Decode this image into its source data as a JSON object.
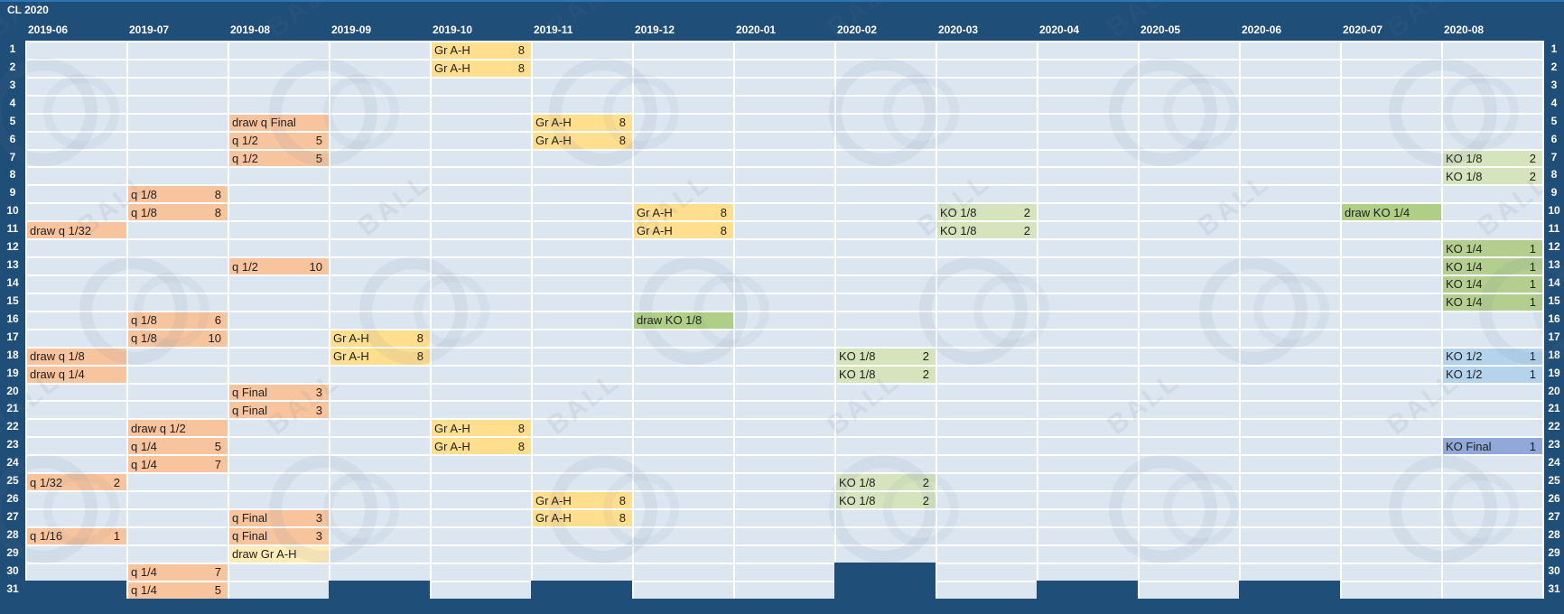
{
  "title": "CL 2020",
  "watermark": {
    "text": "BALL"
  },
  "day_numbers": [
    1,
    2,
    3,
    4,
    5,
    6,
    7,
    8,
    9,
    10,
    11,
    12,
    13,
    14,
    15,
    16,
    17,
    18,
    19,
    20,
    21,
    22,
    23,
    24,
    25,
    26,
    27,
    28,
    29,
    30,
    31
  ],
  "months": [
    {
      "label": "2019-06",
      "days": 30
    },
    {
      "label": "2019-07",
      "days": 31
    },
    {
      "label": "2019-08",
      "days": 31
    },
    {
      "label": "2019-09",
      "days": 30
    },
    {
      "label": "2019-10",
      "days": 31
    },
    {
      "label": "2019-11",
      "days": 30
    },
    {
      "label": "2019-12",
      "days": 31
    },
    {
      "label": "2020-01",
      "days": 31
    },
    {
      "label": "2020-02",
      "days": 29
    },
    {
      "label": "2020-03",
      "days": 31
    },
    {
      "label": "2020-04",
      "days": 30
    },
    {
      "label": "2020-05",
      "days": 31
    },
    {
      "label": "2020-06",
      "days": 30
    },
    {
      "label": "2020-07",
      "days": 31
    },
    {
      "label": "2020-08",
      "days": 31
    }
  ],
  "colors": {
    "navy": "#1F4E78",
    "cell_bg": "#DCE6F1",
    "gridline": "#FFFFFF",
    "text_dark": "#1D1D1D",
    "qual": "#F8C49E",
    "group": "#FFDF8E",
    "group_draw": "#FFECB8",
    "ko18": "#D6E4BE",
    "ko14": "#B4CE8F",
    "ko_draw": "#AECF85",
    "ko12": "#B5D3ED",
    "ko_final": "#90A9D9"
  },
  "events": [
    {
      "month": "2019-06",
      "day": 11,
      "label": "draw q 1/32",
      "value": "",
      "type": "qual"
    },
    {
      "month": "2019-06",
      "day": 18,
      "label": "draw q 1/8",
      "value": "",
      "type": "qual"
    },
    {
      "month": "2019-06",
      "day": 19,
      "label": "draw q 1/4",
      "value": "",
      "type": "qual"
    },
    {
      "month": "2019-06",
      "day": 25,
      "label": "q 1/32",
      "value": "2",
      "type": "qual"
    },
    {
      "month": "2019-06",
      "day": 28,
      "label": "q 1/16",
      "value": "1",
      "type": "qual"
    },
    {
      "month": "2019-07",
      "day": 9,
      "label": "q 1/8",
      "value": "8",
      "type": "qual"
    },
    {
      "month": "2019-07",
      "day": 10,
      "label": "q 1/8",
      "value": "8",
      "type": "qual"
    },
    {
      "month": "2019-07",
      "day": 16,
      "label": "q 1/8",
      "value": "6",
      "type": "qual"
    },
    {
      "month": "2019-07",
      "day": 17,
      "label": "q 1/8",
      "value": "10",
      "type": "qual"
    },
    {
      "month": "2019-07",
      "day": 22,
      "label": "draw q 1/2",
      "value": "",
      "type": "qual"
    },
    {
      "month": "2019-07",
      "day": 23,
      "label": "q 1/4",
      "value": "5",
      "type": "qual"
    },
    {
      "month": "2019-07",
      "day": 24,
      "label": "q 1/4",
      "value": "7",
      "type": "qual"
    },
    {
      "month": "2019-07",
      "day": 30,
      "label": "q 1/4",
      "value": "7",
      "type": "qual"
    },
    {
      "month": "2019-07",
      "day": 31,
      "label": "q 1/4",
      "value": "5",
      "type": "qual"
    },
    {
      "month": "2019-08",
      "day": 5,
      "label": "draw q Final",
      "value": "",
      "type": "qual"
    },
    {
      "month": "2019-08",
      "day": 6,
      "label": "q 1/2",
      "value": "5",
      "type": "qual"
    },
    {
      "month": "2019-08",
      "day": 7,
      "label": "q 1/2",
      "value": "5",
      "type": "qual"
    },
    {
      "month": "2019-08",
      "day": 13,
      "label": "q 1/2",
      "value": "10",
      "type": "qual"
    },
    {
      "month": "2019-08",
      "day": 20,
      "label": "q Final",
      "value": "3",
      "type": "qual"
    },
    {
      "month": "2019-08",
      "day": 21,
      "label": "q Final",
      "value": "3",
      "type": "qual"
    },
    {
      "month": "2019-08",
      "day": 27,
      "label": "q Final",
      "value": "3",
      "type": "qual"
    },
    {
      "month": "2019-08",
      "day": 28,
      "label": "q Final",
      "value": "3",
      "type": "qual"
    },
    {
      "month": "2019-08",
      "day": 29,
      "label": "draw Gr A-H",
      "value": "",
      "type": "group_draw"
    },
    {
      "month": "2019-09",
      "day": 17,
      "label": "Gr A-H",
      "value": "8",
      "type": "group"
    },
    {
      "month": "2019-09",
      "day": 18,
      "label": "Gr A-H",
      "value": "8",
      "type": "group"
    },
    {
      "month": "2019-10",
      "day": 1,
      "label": "Gr A-H",
      "value": "8",
      "type": "group"
    },
    {
      "month": "2019-10",
      "day": 2,
      "label": "Gr A-H",
      "value": "8",
      "type": "group"
    },
    {
      "month": "2019-10",
      "day": 22,
      "label": "Gr A-H",
      "value": "8",
      "type": "group"
    },
    {
      "month": "2019-10",
      "day": 23,
      "label": "Gr A-H",
      "value": "8",
      "type": "group"
    },
    {
      "month": "2019-11",
      "day": 5,
      "label": "Gr A-H",
      "value": "8",
      "type": "group"
    },
    {
      "month": "2019-11",
      "day": 6,
      "label": "Gr A-H",
      "value": "8",
      "type": "group"
    },
    {
      "month": "2019-11",
      "day": 26,
      "label": "Gr A-H",
      "value": "8",
      "type": "group"
    },
    {
      "month": "2019-11",
      "day": 27,
      "label": "Gr A-H",
      "value": "8",
      "type": "group"
    },
    {
      "month": "2019-12",
      "day": 10,
      "label": "Gr A-H",
      "value": "8",
      "type": "group"
    },
    {
      "month": "2019-12",
      "day": 11,
      "label": "Gr A-H",
      "value": "8",
      "type": "group"
    },
    {
      "month": "2019-12",
      "day": 16,
      "label": "draw KO 1/8",
      "value": "",
      "type": "ko_draw"
    },
    {
      "month": "2020-02",
      "day": 18,
      "label": "KO 1/8",
      "value": "2",
      "type": "ko18"
    },
    {
      "month": "2020-02",
      "day": 19,
      "label": "KO 1/8",
      "value": "2",
      "type": "ko18"
    },
    {
      "month": "2020-02",
      "day": 25,
      "label": "KO 1/8",
      "value": "2",
      "type": "ko18"
    },
    {
      "month": "2020-02",
      "day": 26,
      "label": "KO 1/8",
      "value": "2",
      "type": "ko18"
    },
    {
      "month": "2020-03",
      "day": 10,
      "label": "KO 1/8",
      "value": "2",
      "type": "ko18"
    },
    {
      "month": "2020-03",
      "day": 11,
      "label": "KO 1/8",
      "value": "2",
      "type": "ko18"
    },
    {
      "month": "2020-07",
      "day": 10,
      "label": "draw KO 1/4",
      "value": "",
      "type": "ko_draw"
    },
    {
      "month": "2020-08",
      "day": 7,
      "label": "KO 1/8",
      "value": "2",
      "type": "ko18"
    },
    {
      "month": "2020-08",
      "day": 8,
      "label": "KO 1/8",
      "value": "2",
      "type": "ko18"
    },
    {
      "month": "2020-08",
      "day": 12,
      "label": "KO 1/4",
      "value": "1",
      "type": "ko14"
    },
    {
      "month": "2020-08",
      "day": 13,
      "label": "KO 1/4",
      "value": "1",
      "type": "ko14"
    },
    {
      "month": "2020-08",
      "day": 14,
      "label": "KO 1/4",
      "value": "1",
      "type": "ko14"
    },
    {
      "month": "2020-08",
      "day": 15,
      "label": "KO 1/4",
      "value": "1",
      "type": "ko14"
    },
    {
      "month": "2020-08",
      "day": 18,
      "label": "KO 1/2",
      "value": "1",
      "type": "ko12"
    },
    {
      "month": "2020-08",
      "day": 19,
      "label": "KO 1/2",
      "value": "1",
      "type": "ko12"
    },
    {
      "month": "2020-08",
      "day": 23,
      "label": "KO Final",
      "value": "1",
      "type": "ko_final"
    }
  ]
}
